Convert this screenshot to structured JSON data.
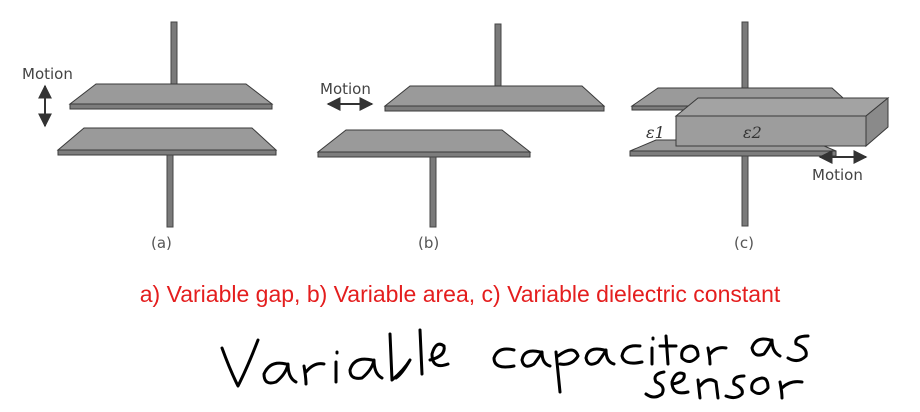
{
  "panels": [
    {
      "label": "(a)",
      "motion": "Motion"
    },
    {
      "label": "(b)",
      "motion": "Motion"
    },
    {
      "label": "(c)",
      "motion": "Motion",
      "dielectric_1": "ε1",
      "dielectric_2": "ε2"
    }
  ],
  "caption": "a) Variable gap, b) Variable area, c) Variable dielectric constant",
  "handwriting": [
    "Variable",
    "capacitor as",
    "sensor"
  ],
  "colors": {
    "plate": "#9a9a9a",
    "plate_edge": "#3a3a3a",
    "caption": "#e41e1e",
    "ink": "#000000"
  }
}
